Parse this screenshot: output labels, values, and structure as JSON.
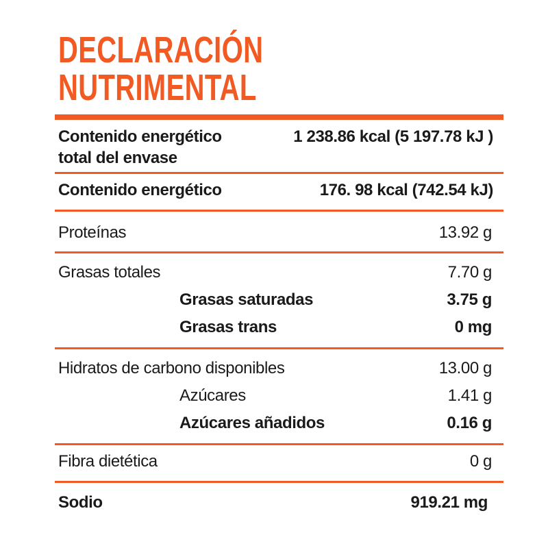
{
  "title": {
    "line1": "DECLARACIÓN",
    "line2": "NUTRIMENTAL"
  },
  "rows": [
    {
      "label": [
        "Contenido energético",
        "total del envase"
      ],
      "value": "1 238.86 kcal  (5 197.78 kJ )"
    },
    {
      "label": "Contenido energético",
      "value": "176. 98 kcal (742.54 kJ)"
    },
    {
      "label": "Proteínas",
      "value": "13.92 g"
    },
    {
      "label": "Grasas totales",
      "value": "7.70 g"
    },
    {
      "label": "Grasas saturadas",
      "value": "3.75 g"
    },
    {
      "label": "Grasas trans",
      "value": "0 mg"
    },
    {
      "label": "Hidratos de carbono disponibles",
      "value": "13.00 g"
    },
    {
      "label": "Azúcares",
      "value": "1.41 g"
    },
    {
      "label": "Azúcares añadidos",
      "value": "0.16 g"
    },
    {
      "label": "Fibra dietética",
      "value": "0 g"
    },
    {
      "label": "Sodio",
      "value": "919.21 mg"
    }
  ]
}
